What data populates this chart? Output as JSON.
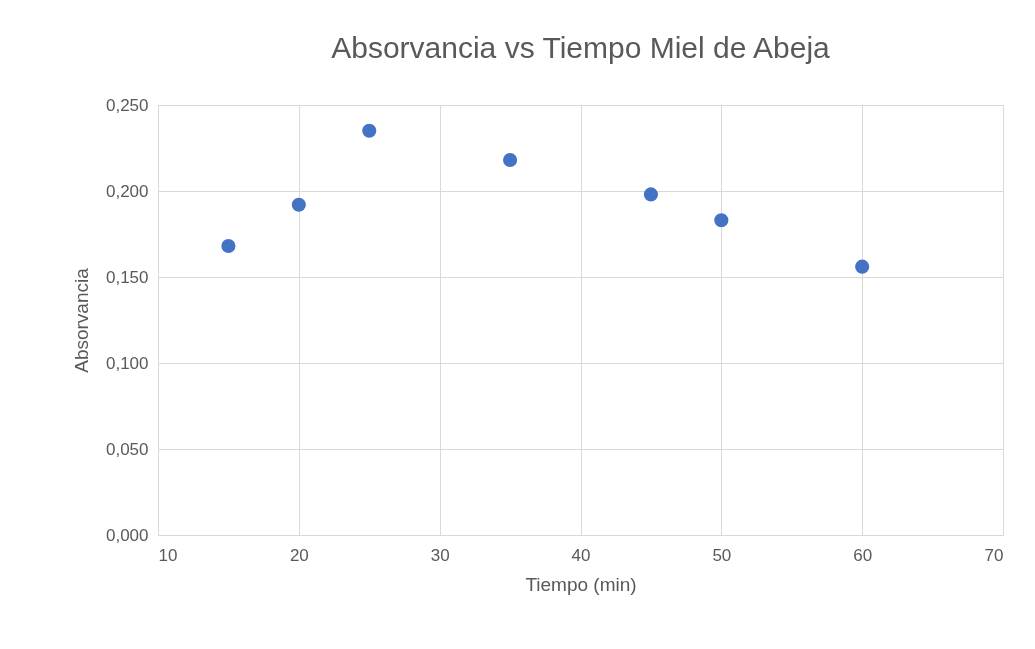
{
  "chart_data": {
    "type": "scatter",
    "title": "Absorvancia vs Tiempo Miel de Abeja",
    "xlabel": "Tiempo (min)",
    "ylabel": "Absorvancia",
    "x": [
      15,
      20,
      25,
      35,
      45,
      50,
      60
    ],
    "series": [
      {
        "color": "#4472c4",
        "values": [
          0.168,
          0.192,
          0.235,
          0.218,
          0.198,
          0.183,
          0.156
        ]
      }
    ],
    "xlim": [
      10,
      70
    ],
    "xticks": [
      10,
      20,
      30,
      40,
      50,
      60,
      70
    ],
    "ylim": [
      0,
      0.25
    ],
    "yticks": [
      {
        "value": 0,
        "label": "0,000"
      },
      {
        "value": 0.05,
        "label": "0,050"
      },
      {
        "value": 0.1,
        "label": "0,100"
      },
      {
        "value": 0.15,
        "label": "0,150"
      },
      {
        "value": 0.2,
        "label": "0,200"
      },
      {
        "value": 0.25,
        "label": "0,250"
      }
    ],
    "grid": true,
    "marker": "circle"
  }
}
